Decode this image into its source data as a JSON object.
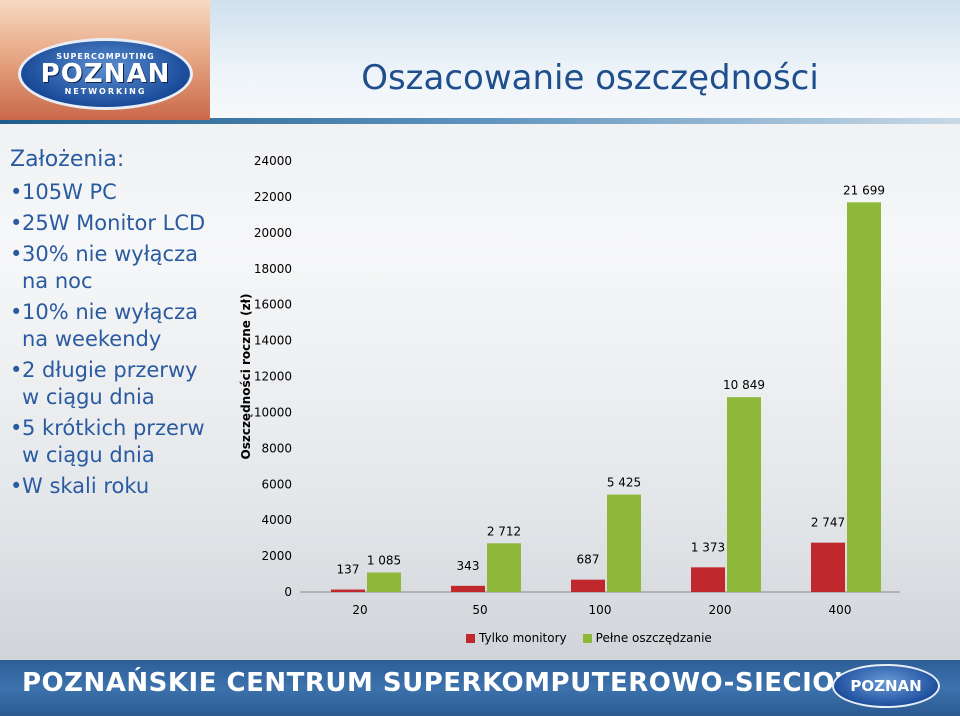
{
  "header": {
    "logo": {
      "top": "SUPERCOMPUTING",
      "main": "POZNAN",
      "bottom": "NETWORKING"
    },
    "title": "Oszacowanie oszczędności"
  },
  "assumptions": {
    "heading": "Założenia:",
    "items": [
      "105W PC",
      "25W Monitor LCD",
      "30% nie wyłącza na noc",
      "10% nie wyłącza na weekendy",
      "2 długie przerwy w ciągu dnia",
      "5 krótkich przerw w ciągu dnia",
      "W skali roku"
    ]
  },
  "footer": {
    "text": "POZNAŃSKIE CENTRUM SUPERKOMPUTEROWO-SIECIOWE",
    "logo": "POZNAN"
  },
  "chart_data": {
    "type": "bar",
    "ylabel": "Oszczędności roczne (zł)",
    "ylim": [
      0,
      24000
    ],
    "yticks": [
      0,
      2000,
      4000,
      6000,
      8000,
      10000,
      12000,
      14000,
      16000,
      18000,
      20000,
      22000,
      24000
    ],
    "categories": [
      "20",
      "50",
      "100",
      "200",
      "400"
    ],
    "series": [
      {
        "name": "Tylko monitory",
        "color": "#c0282d",
        "values": [
          137,
          343,
          687,
          1373,
          2747
        ],
        "labels": [
          "137",
          "343",
          "687",
          "1 373",
          "2 747"
        ]
      },
      {
        "name": "Pełne oszczędzanie",
        "color": "#8db83a",
        "values": [
          1085,
          2712,
          5425,
          10849,
          21699
        ],
        "labels": [
          "1 085",
          "2 712",
          "5 425",
          "10 849",
          "21 699"
        ]
      }
    ],
    "legend": "bottom"
  }
}
